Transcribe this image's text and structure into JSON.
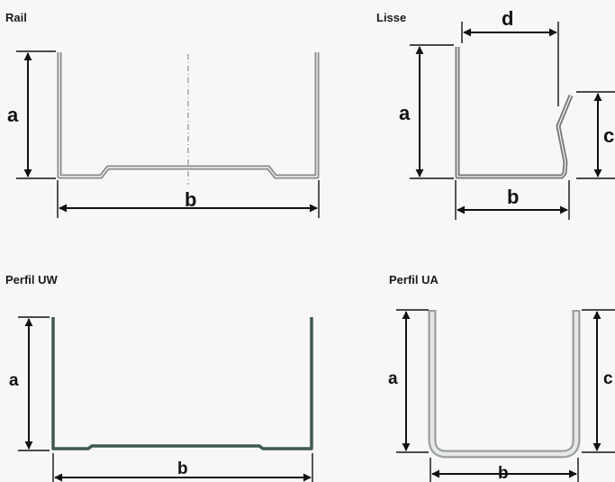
{
  "profiles": [
    {
      "id": "rail",
      "title": "Rail",
      "dims": {
        "a": "a",
        "b": "b"
      }
    },
    {
      "id": "lisse",
      "title": "Lisse",
      "dims": {
        "a": "a",
        "b": "b",
        "c": "c",
        "d": "d"
      }
    },
    {
      "id": "uw",
      "title": "Perfil UW",
      "dims": {
        "a": "a",
        "b": "b"
      }
    },
    {
      "id": "ua",
      "title": "Perfil UA",
      "dims": {
        "a": "a",
        "b": "b",
        "c": "c"
      }
    }
  ],
  "colors": {
    "rail_profile": "#8a8a8a",
    "lisse_profile": "#777777",
    "uw_profile": "#3f5a52",
    "ua_profile": "#9aa09c",
    "ua_inner": "#e6e8e6",
    "dimension": "#111111"
  }
}
